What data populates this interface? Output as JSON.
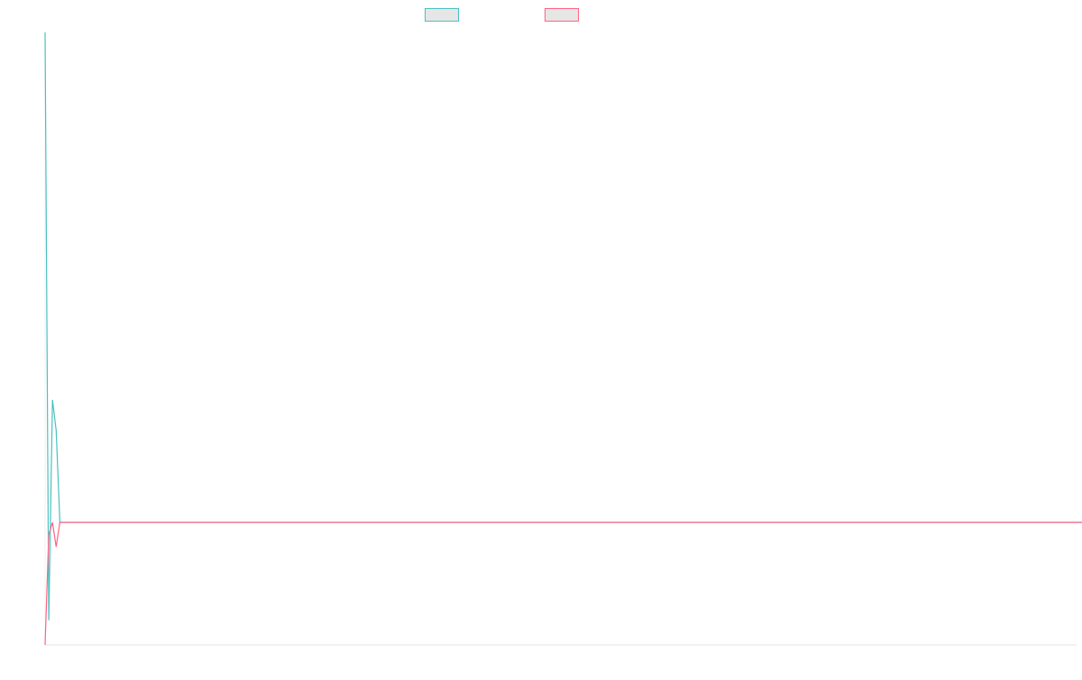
{
  "chart_data": {
    "type": "line",
    "title": "",
    "xlabel": "",
    "ylabel": "",
    "grid": false,
    "legend_position": "top-center",
    "x": [
      0,
      1,
      2,
      3,
      4,
      5,
      10,
      20,
      30,
      40,
      50,
      60,
      70,
      80,
      90,
      100,
      110,
      120,
      130,
      140,
      150,
      160,
      170,
      180,
      190,
      200,
      210,
      220,
      230,
      240,
      250,
      260,
      270,
      280,
      285
    ],
    "ylim": [
      -1,
      4
    ],
    "series": [
      {
        "name": "",
        "color": "#4bc0c0",
        "values": [
          4,
          -0.8,
          1.0,
          0.75,
          0,
          0,
          0,
          0,
          0,
          0,
          0,
          0,
          0,
          0,
          0,
          0,
          0,
          0,
          0,
          0,
          0,
          0,
          0,
          0,
          0,
          0,
          0,
          0,
          0,
          0,
          0,
          0,
          0,
          0,
          0
        ]
      },
      {
        "name": "",
        "color": "#ff6384",
        "values": [
          -1,
          -0.1,
          0,
          -0.2,
          0,
          0,
          0,
          0,
          0,
          0,
          0,
          0,
          0,
          0,
          0,
          0,
          0,
          0,
          0,
          0,
          0,
          0,
          0,
          0,
          0,
          0,
          0,
          0,
          0,
          0,
          0,
          0,
          0,
          0,
          0
        ]
      }
    ]
  }
}
